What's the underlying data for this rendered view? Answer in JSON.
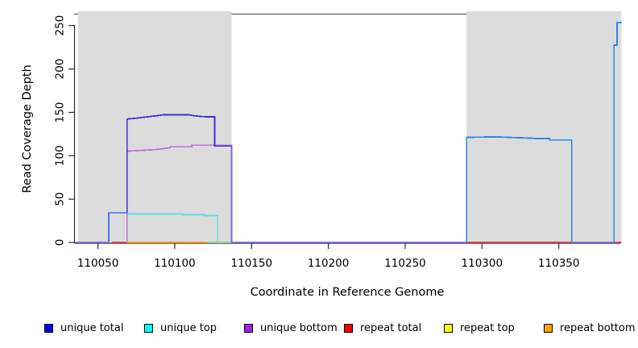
{
  "chart_data": {
    "type": "line",
    "title": "",
    "xlabel": "Coordinate in Reference Genome",
    "ylabel": "Read Coverage Depth",
    "xlim": [
      110035,
      110391
    ],
    "ylim": [
      0,
      263
    ],
    "x_ticks": [
      110050,
      110100,
      110150,
      110200,
      110250,
      110300,
      110350
    ],
    "x_tick_labels": [
      "110050",
      "110100",
      "110150",
      "110200",
      "110250",
      "110300",
      "110350"
    ],
    "y_ticks": [
      0,
      50,
      100,
      150,
      200,
      250
    ],
    "y_tick_labels": [
      "0",
      "50",
      "100",
      "150",
      "200",
      "250"
    ],
    "grid": false,
    "region_color": "#dcdcdc",
    "shaded_regions": [
      [
        110037,
        110137
      ],
      [
        110290,
        110390.8
      ]
    ],
    "legend_position": "bottom",
    "legend": [
      {
        "label": "unique total",
        "color": "#0000ee"
      },
      {
        "label": "unique top",
        "color": "#00ffff"
      },
      {
        "label": "unique bottom",
        "color": "#a020f0"
      },
      {
        "label": "repeat total",
        "color": "#ee0000"
      },
      {
        "label": "repeat top",
        "color": "#ffff00"
      },
      {
        "label": "repeat bottom",
        "color": "#ffa500"
      }
    ],
    "series": [
      {
        "name": "repeat-total-left-baseline",
        "legend": "repeat total",
        "color": "#dc3c55",
        "points": [
          [
            110059,
            0
          ],
          [
            110069,
            0
          ]
        ]
      },
      {
        "name": "repeat-total-right-baseline",
        "legend": "repeat total",
        "color": "#dc3c55",
        "points": [
          [
            110290,
            0
          ],
          [
            110390.8,
            0
          ]
        ]
      },
      {
        "name": "repeat-bottom-baseline",
        "legend": "repeat bottom",
        "color": "#ff8c1c",
        "points": [
          [
            110069,
            0
          ],
          [
            110124,
            0
          ]
        ]
      },
      {
        "name": "overlap-baseline-green",
        "legend": "repeat top",
        "color": "#8fd18f",
        "points": [
          [
            110121,
            0
          ],
          [
            110137,
            0
          ]
        ]
      },
      {
        "name": "unique-top-left",
        "legend": "unique top",
        "color": "#5fdde6",
        "points": [
          [
            110069,
            0
          ],
          [
            110069,
            33
          ],
          [
            110105,
            33
          ],
          [
            110105,
            32
          ],
          [
            110119,
            32
          ],
          [
            110119,
            31
          ],
          [
            110128,
            31
          ],
          [
            110128,
            0
          ]
        ]
      },
      {
        "name": "unique-bottom-left",
        "legend": "unique bottom",
        "color": "#bd74dc",
        "points": [
          [
            110069,
            0
          ],
          [
            110069,
            105
          ],
          [
            110079,
            106
          ],
          [
            110088,
            107
          ],
          [
            110097,
            109
          ],
          [
            110097,
            110
          ],
          [
            110111,
            110
          ],
          [
            110111,
            112
          ],
          [
            110137,
            112
          ],
          [
            110137,
            0
          ]
        ]
      },
      {
        "name": "unique-total-low-step",
        "legend": "unique total",
        "color": "#4673ea",
        "points": [
          [
            110057,
            0
          ],
          [
            110057,
            34
          ],
          [
            110069,
            34
          ]
        ]
      },
      {
        "name": "unique-total-left-plateau",
        "legend": "unique total",
        "color": "#3a31d2",
        "points": [
          [
            110069,
            34
          ],
          [
            110069,
            142
          ],
          [
            110075,
            143
          ],
          [
            110079,
            144
          ],
          [
            110084,
            145
          ],
          [
            110089,
            146
          ],
          [
            110093,
            147
          ],
          [
            110109,
            147
          ],
          [
            110112,
            146
          ],
          [
            110117,
            145
          ],
          [
            110122,
            144.5
          ],
          [
            110126,
            144.5
          ],
          [
            110126,
            111
          ],
          [
            110137,
            111
          ]
        ]
      },
      {
        "name": "unique-total-mid-baseline",
        "legend": "unique total",
        "color": "#7766ee",
        "points": [
          [
            110137,
            111
          ],
          [
            110137,
            0
          ],
          [
            110290,
            0
          ]
        ]
      },
      {
        "name": "unique-total-left-baseline",
        "legend": "unique total",
        "color": "#7766ee",
        "points": [
          [
            110034.8,
            0
          ],
          [
            110057,
            0
          ]
        ]
      },
      {
        "name": "unique-total-right-gap-baseline",
        "legend": "unique total",
        "color": "#7766ee",
        "points": [
          [
            110358.5,
            0
          ],
          [
            110386,
            0
          ]
        ]
      },
      {
        "name": "unique-total-right-plateau",
        "legend": "unique total",
        "color": "#2f86e8",
        "points": [
          [
            110290,
            0
          ],
          [
            110290,
            121
          ],
          [
            110310,
            121.5
          ],
          [
            110317,
            121
          ],
          [
            110332,
            120
          ],
          [
            110336,
            119.5
          ],
          [
            110344,
            119.5
          ],
          [
            110344,
            118
          ],
          [
            110358.5,
            118
          ],
          [
            110358.5,
            0
          ]
        ]
      },
      {
        "name": "unique-total-right-spike",
        "legend": "unique total",
        "color": "#2f86e8",
        "points": [
          [
            110386,
            0
          ],
          [
            110386,
            227
          ],
          [
            110388,
            227
          ],
          [
            110388,
            253
          ],
          [
            110390.8,
            253
          ]
        ]
      }
    ]
  }
}
